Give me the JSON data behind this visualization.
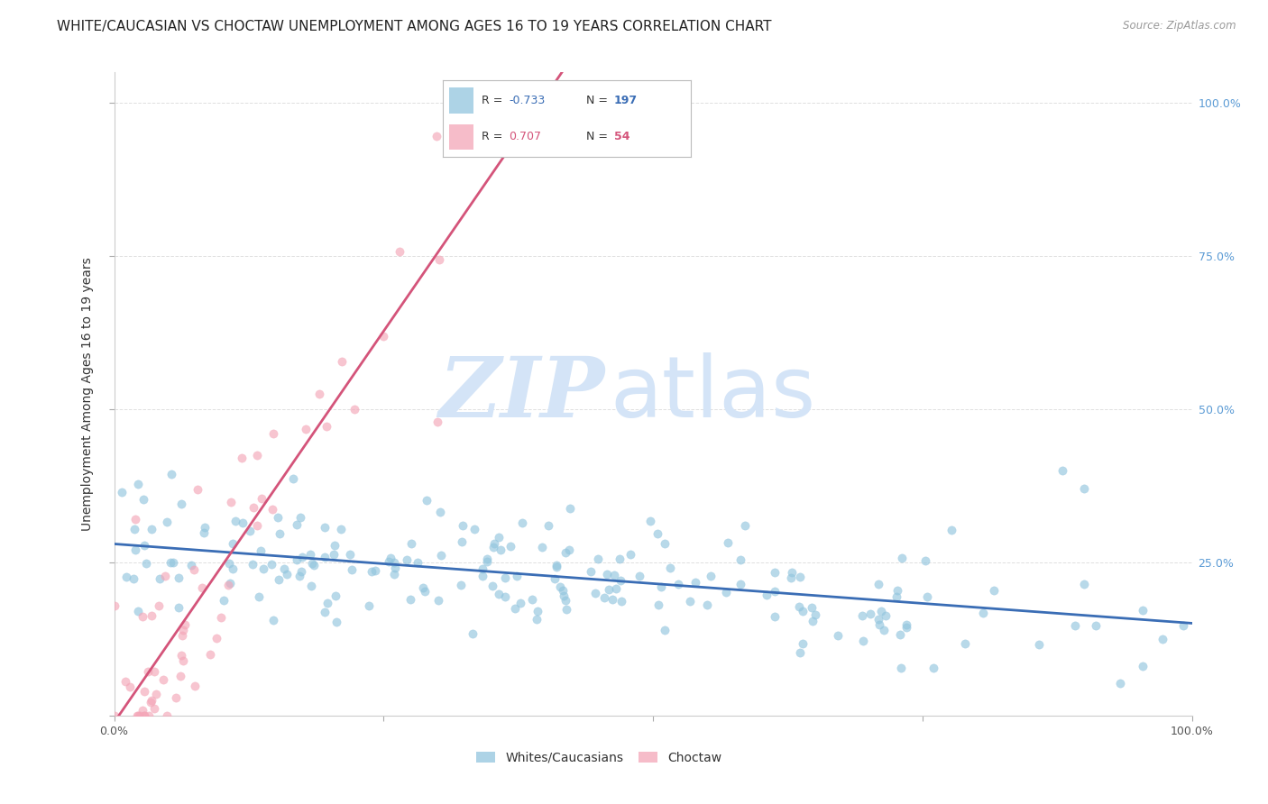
{
  "title": "WHITE/CAUCASIAN VS CHOCTAW UNEMPLOYMENT AMONG AGES 16 TO 19 YEARS CORRELATION CHART",
  "source": "Source: ZipAtlas.com",
  "ylabel": "Unemployment Among Ages 16 to 19 years",
  "xlim": [
    0,
    1.0
  ],
  "ylim": [
    0,
    1.05
  ],
  "blue_color": "#92c5de",
  "pink_color": "#f4a6b8",
  "blue_line_color": "#3a6db5",
  "pink_line_color": "#d4547a",
  "legend_blue_R": "-0.733",
  "legend_blue_N": "197",
  "legend_pink_R": "0.707",
  "legend_pink_N": "54",
  "watermark_color": "#d4e4f7",
  "background_color": "#ffffff",
  "grid_color": "#e0e0e0",
  "title_fontsize": 11,
  "axis_fontsize": 10,
  "tick_fontsize": 9,
  "right_tick_color": "#5b9bd5",
  "blue_seed": 7,
  "pink_seed": 13
}
